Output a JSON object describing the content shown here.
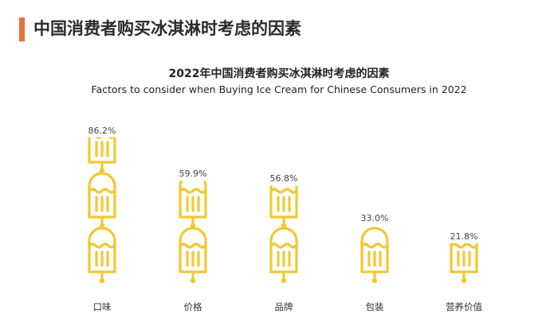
{
  "header": {
    "title": "中国消费者购买冰淇淋时考虑的因素"
  },
  "colors": {
    "accent": "#e8703c",
    "icon": "#f2c832"
  },
  "chart_data": {
    "type": "bar",
    "title": "2022年中国消费者购买冰淇淋时考虑的因素",
    "subtitle": "Factors to consider when Buying Ice Cream for Chinese Consumers in 2022",
    "categories": [
      "口味",
      "价格",
      "品牌",
      "包装",
      "营养价值"
    ],
    "values": [
      86.2,
      59.9,
      56.8,
      33.0,
      21.8
    ],
    "value_labels": [
      "86.2%",
      "59.9%",
      "56.8%",
      "33.0%",
      "21.8%"
    ],
    "unit": "%",
    "ylim": [
      0,
      100
    ],
    "mark": "ice-cream-popsicle-icon"
  }
}
